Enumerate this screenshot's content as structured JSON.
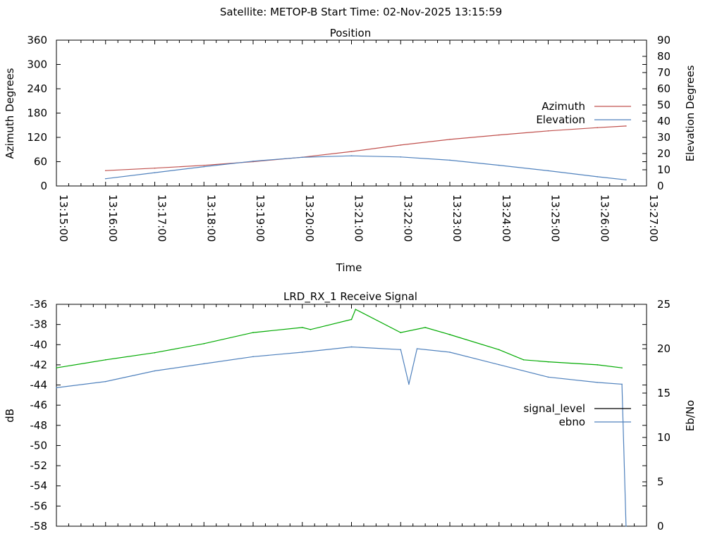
{
  "header": {
    "title": "Satellite: METOP-B    Start Time: 02-Nov-2025 13:15:59"
  },
  "chart_data": [
    {
      "type": "line",
      "title": "Position",
      "xlabel": "Time",
      "ylabel": "Azimuth Degrees",
      "y2label": "Elevation Degrees",
      "x_ticks": [
        "13:15:00",
        "13:16:00",
        "13:17:00",
        "13:18:00",
        "13:19:00",
        "13:20:00",
        "13:21:00",
        "13:22:00",
        "13:23:00",
        "13:24:00",
        "13:25:00",
        "13:26:00",
        "13:27:00"
      ],
      "xlim": [
        "13:15:00",
        "13:27:00"
      ],
      "ylim": [
        0,
        360
      ],
      "y_ticks": [
        "0",
        "60",
        "120",
        "180",
        "240",
        "300",
        "360"
      ],
      "y2lim": [
        0,
        90
      ],
      "y2_ticks": [
        "0",
        "10",
        "20",
        "30",
        "40",
        "50",
        "60",
        "70",
        "80",
        "90"
      ],
      "legend_position": "right",
      "series": [
        {
          "name": "Azimuth",
          "axis": "y",
          "color": "#c0504d",
          "x": [
            "13:16:00",
            "13:17:00",
            "13:18:00",
            "13:19:00",
            "13:20:00",
            "13:21:00",
            "13:22:00",
            "13:23:00",
            "13:24:00",
            "13:25:00",
            "13:26:00",
            "13:26:35"
          ],
          "values": [
            38,
            44,
            51,
            60,
            71,
            85,
            101,
            115,
            126,
            136,
            144,
            148
          ]
        },
        {
          "name": "Elevation",
          "axis": "y2",
          "color": "#4f81bd",
          "x": [
            "13:16:00",
            "13:17:00",
            "13:18:00",
            "13:19:00",
            "13:20:00",
            "13:21:00",
            "13:22:00",
            "13:23:00",
            "13:24:00",
            "13:25:00",
            "13:26:00",
            "13:26:35"
          ],
          "values": [
            4.5,
            8.2,
            11.9,
            15.3,
            17.7,
            18.6,
            17.9,
            15.9,
            12.8,
            9.4,
            5.7,
            3.8
          ]
        }
      ]
    },
    {
      "type": "line",
      "title": "LRD_RX_1 Receive Signal",
      "ylabel": "dB",
      "y2label": "Eb/No",
      "ylim": [
        -58,
        -36
      ],
      "y_ticks": [
        "-36",
        "-38",
        "-40",
        "-42",
        "-44",
        "-46",
        "-48",
        "-50",
        "-52",
        "-54",
        "-56",
        "-58"
      ],
      "y2lim": [
        0,
        25
      ],
      "y2_ticks": [
        "0",
        "5",
        "10",
        "15",
        "20",
        "25"
      ],
      "xlim": [
        "13:15:00",
        "13:27:00"
      ],
      "legend_position": "right",
      "series": [
        {
          "name": "signal_level",
          "axis": "y",
          "legend_color": "#000000",
          "color": "#00aa00",
          "x": [
            "13:15:00",
            "13:16:00",
            "13:17:00",
            "13:18:00",
            "13:19:00",
            "13:20:00",
            "13:20:10",
            "13:21:00",
            "13:21:05",
            "13:22:00",
            "13:22:30",
            "13:23:00",
            "13:24:00",
            "13:24:30",
            "13:25:00",
            "13:26:00",
            "13:26:30"
          ],
          "values": [
            -42.3,
            -41.5,
            -40.8,
            -39.9,
            -38.8,
            -38.3,
            -38.5,
            -37.5,
            -36.5,
            -38.8,
            -38.3,
            -39.0,
            -40.5,
            -41.5,
            -41.7,
            -42.0,
            -42.3
          ]
        },
        {
          "name": "ebno",
          "axis": "y2",
          "color": "#4f81bd",
          "x": [
            "13:15:00",
            "13:16:00",
            "13:17:00",
            "13:18:00",
            "13:19:00",
            "13:20:00",
            "13:21:00",
            "13:22:00",
            "13:22:10",
            "13:22:20",
            "13:23:00",
            "13:24:00",
            "13:25:00",
            "13:26:00",
            "13:26:30",
            "13:26:35"
          ],
          "values": [
            15.6,
            16.3,
            17.5,
            18.3,
            19.1,
            19.6,
            20.2,
            19.9,
            16.0,
            20.0,
            19.6,
            18.2,
            16.8,
            16.2,
            16.0,
            0
          ]
        }
      ]
    }
  ]
}
